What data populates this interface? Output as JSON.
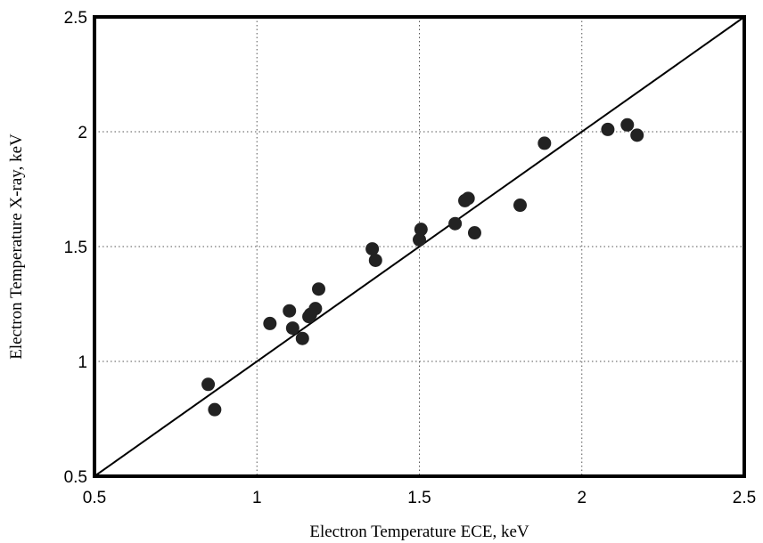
{
  "chart_data": {
    "type": "scatter",
    "title": "",
    "xlabel": "Electron Temperature ECE,   keV",
    "ylabel": "Electron Temperature X-ray, keV",
    "xlim": [
      0.5,
      2.5
    ],
    "ylim": [
      0.5,
      2.5
    ],
    "x_ticks": [
      "0.5",
      "1",
      "1.5",
      "2",
      "2.5"
    ],
    "y_ticks": [
      "0.5",
      "1",
      "1.5",
      "2",
      "2.5"
    ],
    "grid": true,
    "reference_line": {
      "from": [
        0.5,
        0.5
      ],
      "to": [
        2.5,
        2.5
      ]
    },
    "points": [
      {
        "x": 0.85,
        "y": 0.9
      },
      {
        "x": 0.87,
        "y": 0.79
      },
      {
        "x": 1.04,
        "y": 1.165
      },
      {
        "x": 1.1,
        "y": 1.22
      },
      {
        "x": 1.11,
        "y": 1.145
      },
      {
        "x": 1.14,
        "y": 1.1
      },
      {
        "x": 1.16,
        "y": 1.195
      },
      {
        "x": 1.165,
        "y": 1.205
      },
      {
        "x": 1.18,
        "y": 1.23
      },
      {
        "x": 1.19,
        "y": 1.315
      },
      {
        "x": 1.355,
        "y": 1.49
      },
      {
        "x": 1.365,
        "y": 1.44
      },
      {
        "x": 1.5,
        "y": 1.53
      },
      {
        "x": 1.505,
        "y": 1.575
      },
      {
        "x": 1.61,
        "y": 1.6
      },
      {
        "x": 1.64,
        "y": 1.7
      },
      {
        "x": 1.65,
        "y": 1.71
      },
      {
        "x": 1.67,
        "y": 1.56
      },
      {
        "x": 1.81,
        "y": 1.68
      },
      {
        "x": 1.885,
        "y": 1.95
      },
      {
        "x": 2.08,
        "y": 2.01
      },
      {
        "x": 2.14,
        "y": 2.03
      },
      {
        "x": 2.17,
        "y": 1.985
      }
    ]
  }
}
